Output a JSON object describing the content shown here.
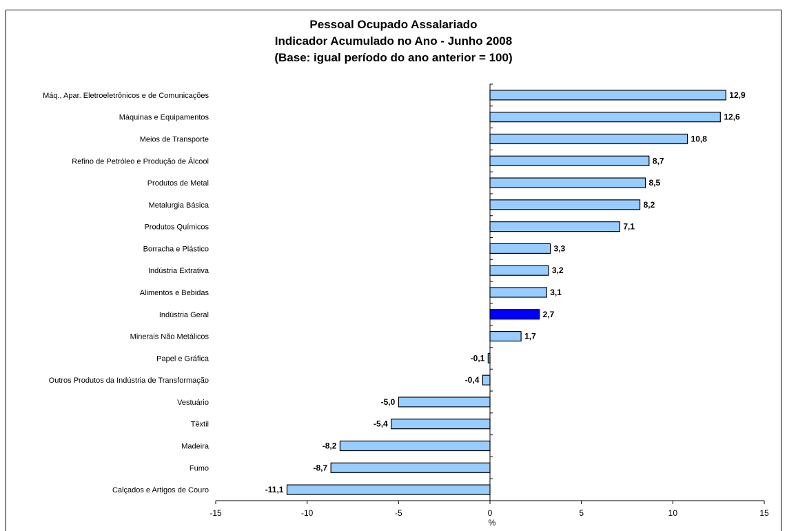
{
  "chart_data": {
    "type": "bar",
    "orientation": "horizontal",
    "title": [
      "Pessoal Ocupado Assalariado",
      "Indicador Acumulado no Ano - Junho 2008",
      "(Base: igual período do ano anterior = 100)"
    ],
    "xlabel": "%",
    "ylabel": "",
    "xlim": [
      -15,
      15
    ],
    "xticks": [
      "-15",
      "-10",
      "-5",
      "0",
      "5",
      "10",
      "15"
    ],
    "grid": false,
    "legend": "none",
    "colors": {
      "bar": "#99ccff",
      "highlight": "#0000ff",
      "edge": "#000000"
    },
    "categories": [
      "Máq., Apar. Eletroeletrônicos e de Comunicações",
      "Máquinas e Equipamentos",
      "Meios de Transporte",
      "Refino de Petróleo e Produção de Álcool",
      "Produtos de Metal",
      "Metalurgia Básica",
      "Produtos Químicos",
      "Borracha e Plástico",
      "Indústria Extrativa",
      "Alimentos e Bebidas",
      "Indústria Geral",
      "Minerais Não Metálicos",
      "Papel e Gráfica",
      "Outros Produtos da Indústria de Transformação",
      "Vestuário",
      "Têxtil",
      "Madeira",
      "Fumo",
      "Calçados e Artigos de Couro"
    ],
    "values": [
      12.9,
      12.6,
      10.8,
      8.7,
      8.5,
      8.2,
      7.1,
      3.3,
      3.2,
      3.1,
      2.7,
      1.7,
      -0.1,
      -0.4,
      -5.0,
      -5.4,
      -8.2,
      -8.7,
      -11.1
    ],
    "data_labels": [
      "12,9",
      "12,6",
      "10,8",
      "8,7",
      "8,5",
      "8,2",
      "7,1",
      "3,3",
      "3,2",
      "3,1",
      "2,7",
      "1,7",
      "-0,1",
      "-0,4",
      "-5,0",
      "-5,4",
      "-8,2",
      "-8,7",
      "-11,1"
    ],
    "highlight_category": "Indústria Geral"
  }
}
